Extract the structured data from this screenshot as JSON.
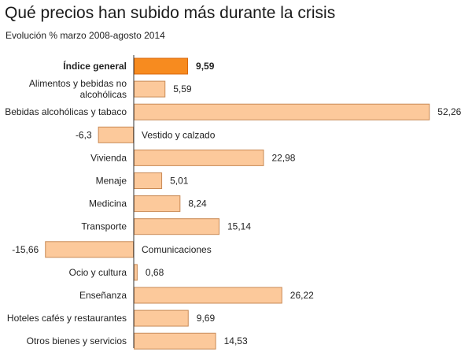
{
  "header": {
    "title": "Qué precios han subido más durante la crisis",
    "subtitle": "Evolución % marzo 2008-agosto 2014"
  },
  "colors": {
    "highlight_fill": "#f78b1f",
    "highlight_stroke": "#d9660a",
    "bar_fill": "#fcc99b",
    "bar_stroke": "#c98a55",
    "axis": "#333333"
  },
  "chart_data": {
    "type": "bar",
    "orientation": "horizontal",
    "title": "Qué precios han subido más durante la crisis",
    "subtitle": "Evolución % marzo 2008-agosto 2014",
    "xlim": [
      -20,
      54
    ],
    "grid": false,
    "categories": [
      "Índice general",
      "Alimentos y bebidas no alcohólicas",
      "Bebidas alcohólicas y tabaco",
      "Vestido y calzado",
      "Vivienda",
      "Menaje",
      "Medicina",
      "Transporte",
      "Comunicaciones",
      "Ocio y cultura",
      "Enseñanza",
      "Hoteles cafés y restaurantes",
      "Otros bienes y servicios"
    ],
    "category_lines": [
      [
        "Índice general"
      ],
      [
        "Alimentos y bebidas no",
        "alcohólicas"
      ],
      [
        "Bebidas alcohólicas y tabaco"
      ],
      [
        "Vestido y calzado"
      ],
      [
        "Vivienda"
      ],
      [
        "Menaje"
      ],
      [
        "Medicina"
      ],
      [
        "Transporte"
      ],
      [
        "Comunicaciones"
      ],
      [
        "Ocio y cultura"
      ],
      [
        "Enseñanza"
      ],
      [
        "Hoteles cafés y restaurantes"
      ],
      [
        "Otros bienes y servicios"
      ]
    ],
    "values": [
      9.59,
      5.59,
      52.26,
      -6.3,
      22.98,
      5.01,
      8.24,
      15.14,
      -15.66,
      0.68,
      26.22,
      9.69,
      14.53
    ],
    "value_labels": [
      "9,59",
      "5,59",
      "52,26",
      "-6,3",
      "22,98",
      "5,01",
      "8,24",
      "15,14",
      "-15,66",
      "0,68",
      "26,22",
      "9,69",
      "14,53"
    ],
    "highlight_index": 0
  }
}
